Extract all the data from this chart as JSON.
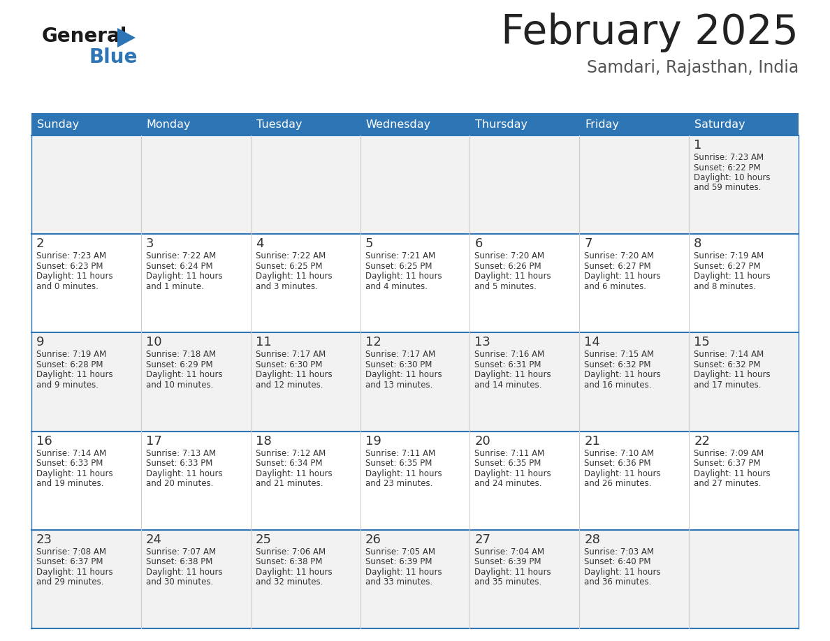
{
  "title": "February 2025",
  "subtitle": "Samdari, Rajasthan, India",
  "header_bg": "#2E75B6",
  "header_text": "#FFFFFF",
  "day_names": [
    "Sunday",
    "Monday",
    "Tuesday",
    "Wednesday",
    "Thursday",
    "Friday",
    "Saturday"
  ],
  "cell_bg_odd": "#F2F2F2",
  "cell_bg_even": "#FFFFFF",
  "cell_border": "#2E75B6",
  "date_color": "#333333",
  "info_color": "#333333",
  "title_color": "#222222",
  "subtitle_color": "#555555",
  "logo_general_color": "#1a1a1a",
  "logo_blue_color": "#2E75B6",
  "calendar": [
    [
      null,
      null,
      null,
      null,
      null,
      null,
      {
        "day": 1,
        "sunrise": "7:23 AM",
        "sunset": "6:22 PM",
        "daylight": "10 hours\nand 59 minutes."
      }
    ],
    [
      {
        "day": 2,
        "sunrise": "7:23 AM",
        "sunset": "6:23 PM",
        "daylight": "11 hours\nand 0 minutes."
      },
      {
        "day": 3,
        "sunrise": "7:22 AM",
        "sunset": "6:24 PM",
        "daylight": "11 hours\nand 1 minute."
      },
      {
        "day": 4,
        "sunrise": "7:22 AM",
        "sunset": "6:25 PM",
        "daylight": "11 hours\nand 3 minutes."
      },
      {
        "day": 5,
        "sunrise": "7:21 AM",
        "sunset": "6:25 PM",
        "daylight": "11 hours\nand 4 minutes."
      },
      {
        "day": 6,
        "sunrise": "7:20 AM",
        "sunset": "6:26 PM",
        "daylight": "11 hours\nand 5 minutes."
      },
      {
        "day": 7,
        "sunrise": "7:20 AM",
        "sunset": "6:27 PM",
        "daylight": "11 hours\nand 6 minutes."
      },
      {
        "day": 8,
        "sunrise": "7:19 AM",
        "sunset": "6:27 PM",
        "daylight": "11 hours\nand 8 minutes."
      }
    ],
    [
      {
        "day": 9,
        "sunrise": "7:19 AM",
        "sunset": "6:28 PM",
        "daylight": "11 hours\nand 9 minutes."
      },
      {
        "day": 10,
        "sunrise": "7:18 AM",
        "sunset": "6:29 PM",
        "daylight": "11 hours\nand 10 minutes."
      },
      {
        "day": 11,
        "sunrise": "7:17 AM",
        "sunset": "6:30 PM",
        "daylight": "11 hours\nand 12 minutes."
      },
      {
        "day": 12,
        "sunrise": "7:17 AM",
        "sunset": "6:30 PM",
        "daylight": "11 hours\nand 13 minutes."
      },
      {
        "day": 13,
        "sunrise": "7:16 AM",
        "sunset": "6:31 PM",
        "daylight": "11 hours\nand 14 minutes."
      },
      {
        "day": 14,
        "sunrise": "7:15 AM",
        "sunset": "6:32 PM",
        "daylight": "11 hours\nand 16 minutes."
      },
      {
        "day": 15,
        "sunrise": "7:14 AM",
        "sunset": "6:32 PM",
        "daylight": "11 hours\nand 17 minutes."
      }
    ],
    [
      {
        "day": 16,
        "sunrise": "7:14 AM",
        "sunset": "6:33 PM",
        "daylight": "11 hours\nand 19 minutes."
      },
      {
        "day": 17,
        "sunrise": "7:13 AM",
        "sunset": "6:33 PM",
        "daylight": "11 hours\nand 20 minutes."
      },
      {
        "day": 18,
        "sunrise": "7:12 AM",
        "sunset": "6:34 PM",
        "daylight": "11 hours\nand 21 minutes."
      },
      {
        "day": 19,
        "sunrise": "7:11 AM",
        "sunset": "6:35 PM",
        "daylight": "11 hours\nand 23 minutes."
      },
      {
        "day": 20,
        "sunrise": "7:11 AM",
        "sunset": "6:35 PM",
        "daylight": "11 hours\nand 24 minutes."
      },
      {
        "day": 21,
        "sunrise": "7:10 AM",
        "sunset": "6:36 PM",
        "daylight": "11 hours\nand 26 minutes."
      },
      {
        "day": 22,
        "sunrise": "7:09 AM",
        "sunset": "6:37 PM",
        "daylight": "11 hours\nand 27 minutes."
      }
    ],
    [
      {
        "day": 23,
        "sunrise": "7:08 AM",
        "sunset": "6:37 PM",
        "daylight": "11 hours\nand 29 minutes."
      },
      {
        "day": 24,
        "sunrise": "7:07 AM",
        "sunset": "6:38 PM",
        "daylight": "11 hours\nand 30 minutes."
      },
      {
        "day": 25,
        "sunrise": "7:06 AM",
        "sunset": "6:38 PM",
        "daylight": "11 hours\nand 32 minutes."
      },
      {
        "day": 26,
        "sunrise": "7:05 AM",
        "sunset": "6:39 PM",
        "daylight": "11 hours\nand 33 minutes."
      },
      {
        "day": 27,
        "sunrise": "7:04 AM",
        "sunset": "6:39 PM",
        "daylight": "11 hours\nand 35 minutes."
      },
      {
        "day": 28,
        "sunrise": "7:03 AM",
        "sunset": "6:40 PM",
        "daylight": "11 hours\nand 36 minutes."
      },
      null
    ]
  ]
}
